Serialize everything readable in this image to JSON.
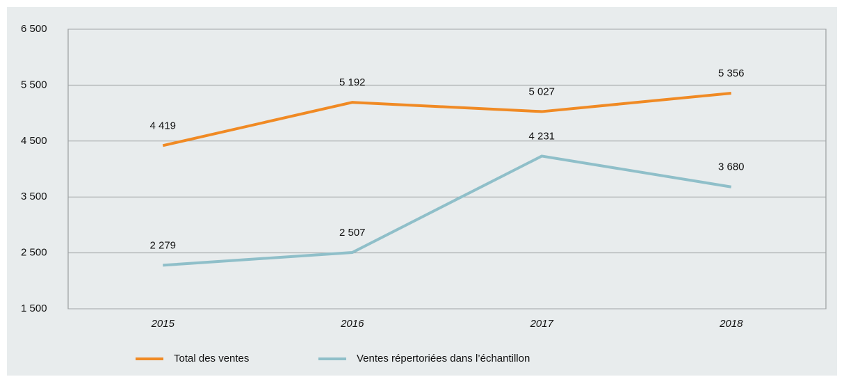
{
  "chart_data": {
    "type": "line",
    "categories": [
      "2015",
      "2016",
      "2017",
      "2018"
    ],
    "series": [
      {
        "name": "Total des ventes",
        "color": "#f08a24",
        "values": [
          4419,
          5192,
          5027,
          5356
        ],
        "value_labels": [
          "4 419",
          "5 192",
          "5 027",
          "5 356"
        ]
      },
      {
        "name": "Ventes répertoriées dans l’échantillon",
        "color": "#8fbfc9",
        "values": [
          2279,
          2507,
          4231,
          3680
        ],
        "value_labels": [
          "2 279",
          "2 507",
          "4 231",
          "3 680"
        ]
      }
    ],
    "ylim": [
      1500,
      6500
    ],
    "yticks": [
      {
        "value": 1500,
        "label": "1 500"
      },
      {
        "value": 2500,
        "label": "2 500"
      },
      {
        "value": 3500,
        "label": "3 500"
      },
      {
        "value": 4500,
        "label": "4 500"
      },
      {
        "value": 5500,
        "label": "5 500"
      },
      {
        "value": 6500,
        "label": "6 500"
      }
    ],
    "grid": true,
    "legend": "bottom"
  }
}
